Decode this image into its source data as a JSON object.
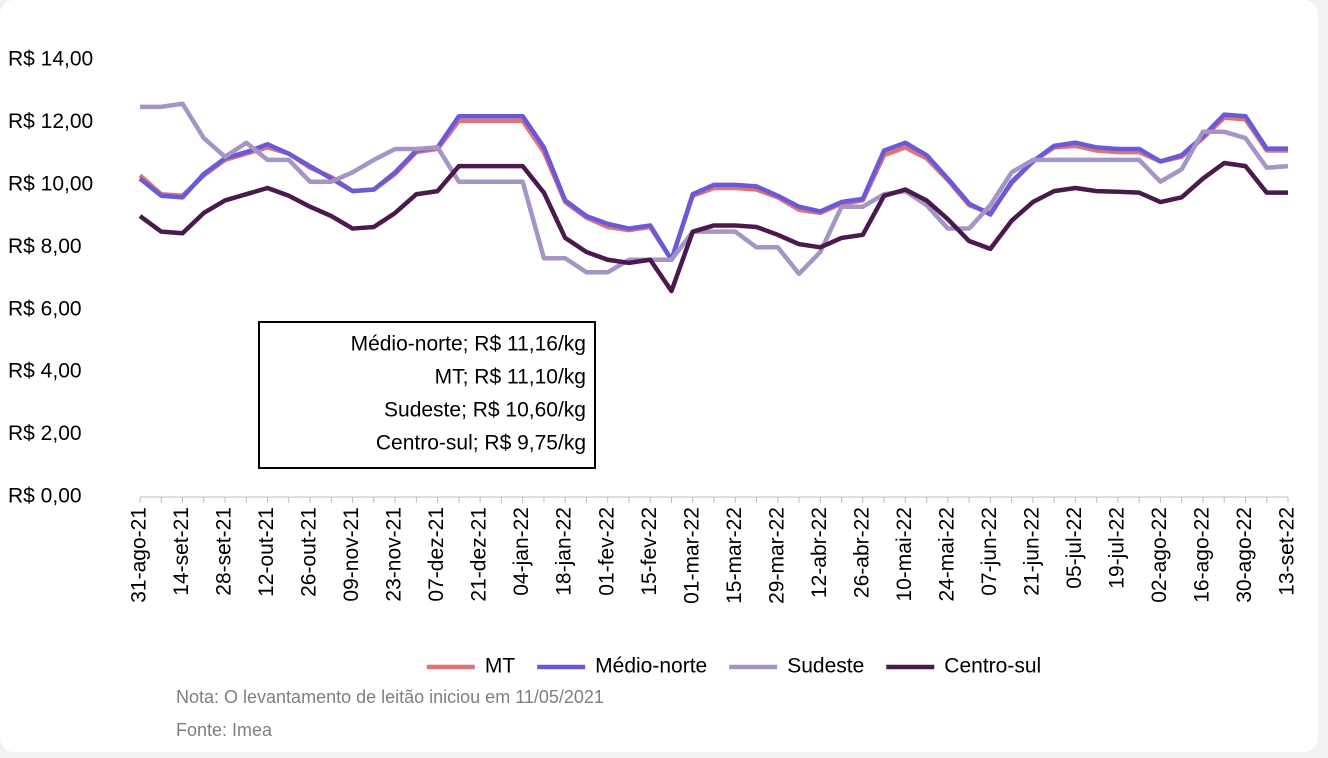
{
  "chart_data": {
    "type": "line",
    "categories": [
      "31-ago-21",
      null,
      "14-set-21",
      null,
      "28-set-21",
      null,
      "12-out-21",
      null,
      "26-out-21",
      null,
      "09-nov-21",
      null,
      "23-nov-21",
      null,
      "07-dez-21",
      null,
      "21-dez-21",
      null,
      "04-jan-22",
      null,
      "18-jan-22",
      null,
      "01-fev-22",
      null,
      "15-fev-22",
      null,
      "01-mar-22",
      null,
      "15-mar-22",
      null,
      "29-mar-22",
      null,
      "12-abr-22",
      null,
      "26-abr-22",
      null,
      "10-mai-22",
      null,
      "24-mai-22",
      null,
      "07-jun-22",
      null,
      "21-jun-22",
      null,
      "05-jul-22",
      null,
      "19-jul-22",
      null,
      "02-ago-22",
      null,
      "16-ago-22",
      null,
      "30-ago-22",
      null,
      "13-set-22"
    ],
    "series": [
      {
        "name": "MT",
        "color": "#de7378",
        "values": [
          10.3,
          9.7,
          9.65,
          10.3,
          10.8,
          11.0,
          11.2,
          11.0,
          10.55,
          10.25,
          9.8,
          9.85,
          10.35,
          11.05,
          11.15,
          12.05,
          12.05,
          12.05,
          12.05,
          11.05,
          9.45,
          8.95,
          8.65,
          8.55,
          8.65,
          7.6,
          9.65,
          9.9,
          9.9,
          9.85,
          9.6,
          9.2,
          9.1,
          9.4,
          9.5,
          10.95,
          11.2,
          10.85,
          10.15,
          9.35,
          9.1,
          10.05,
          10.75,
          11.2,
          11.25,
          11.1,
          11.05,
          11.05,
          10.75,
          10.9,
          11.5,
          12.15,
          12.1,
          11.1,
          11.1
        ]
      },
      {
        "name": "Médio-norte",
        "color": "#6a5ad8",
        "values": [
          10.2,
          9.65,
          9.6,
          10.35,
          10.85,
          11.05,
          11.3,
          11.0,
          10.6,
          10.2,
          9.8,
          9.85,
          10.4,
          11.1,
          11.2,
          12.2,
          12.2,
          12.2,
          12.2,
          11.2,
          9.5,
          9.0,
          8.75,
          8.6,
          8.7,
          7.6,
          9.7,
          10.0,
          10.0,
          9.95,
          9.65,
          9.3,
          9.15,
          9.45,
          9.55,
          11.1,
          11.35,
          10.95,
          10.2,
          9.4,
          9.05,
          10.1,
          10.75,
          11.25,
          11.35,
          11.2,
          11.15,
          11.15,
          10.75,
          10.95,
          11.55,
          12.25,
          12.2,
          11.16,
          11.16
        ]
      },
      {
        "name": "Sudeste",
        "color": "#a594c6",
        "values": [
          12.5,
          12.5,
          12.6,
          11.5,
          10.9,
          11.35,
          10.8,
          10.8,
          10.1,
          10.1,
          10.4,
          10.8,
          11.15,
          11.15,
          11.2,
          10.1,
          10.1,
          10.1,
          10.1,
          7.65,
          7.65,
          7.2,
          7.2,
          7.6,
          7.6,
          7.6,
          8.5,
          8.5,
          8.5,
          8.0,
          8.0,
          7.15,
          7.85,
          9.3,
          9.3,
          9.7,
          9.8,
          9.35,
          8.6,
          8.6,
          9.35,
          10.4,
          10.8,
          10.8,
          10.8,
          10.8,
          10.8,
          10.8,
          10.1,
          10.5,
          11.7,
          11.7,
          11.5,
          10.55,
          10.6
        ]
      },
      {
        "name": "Centro-sul",
        "color": "#4a1a4e",
        "values": [
          9.0,
          8.5,
          8.45,
          9.1,
          9.5,
          9.7,
          9.9,
          9.65,
          9.3,
          9.0,
          8.6,
          8.65,
          9.1,
          9.7,
          9.8,
          10.6,
          10.6,
          10.6,
          10.6,
          9.75,
          8.3,
          7.85,
          7.6,
          7.5,
          7.6,
          6.6,
          8.5,
          8.7,
          8.7,
          8.65,
          8.4,
          8.1,
          8.0,
          8.3,
          8.4,
          9.65,
          9.85,
          9.5,
          8.9,
          8.2,
          7.95,
          8.85,
          9.45,
          9.8,
          9.9,
          9.8,
          9.78,
          9.75,
          9.45,
          9.6,
          10.2,
          10.7,
          10.6,
          9.75,
          9.75
        ]
      }
    ],
    "ylim": [
      0,
      14
    ],
    "yticks": [
      {
        "value": 0,
        "label": "R$ 0,00"
      },
      {
        "value": 2,
        "label": "R$ 2,00"
      },
      {
        "value": 4,
        "label": "R$ 4,00"
      },
      {
        "value": 6,
        "label": "R$ 6,00"
      },
      {
        "value": 8,
        "label": "R$ 8,00"
      },
      {
        "value": 10,
        "label": "R$ 10,00"
      },
      {
        "value": 12,
        "label": "R$ 12,00"
      },
      {
        "value": 14,
        "label": "R$ 14,00"
      }
    ],
    "grid": false,
    "legend": "bottom",
    "annotation": [
      "Médio-norte; R$ 11,16/kg",
      "MT; R$ 11,10/kg",
      "Sudeste; R$ 10,60/kg",
      "Centro-sul; R$ 9,75/kg"
    ],
    "note": "Nota: O levantamento de leitão iniciou em 11/05/2021",
    "source": "Fonte: Imea"
  }
}
